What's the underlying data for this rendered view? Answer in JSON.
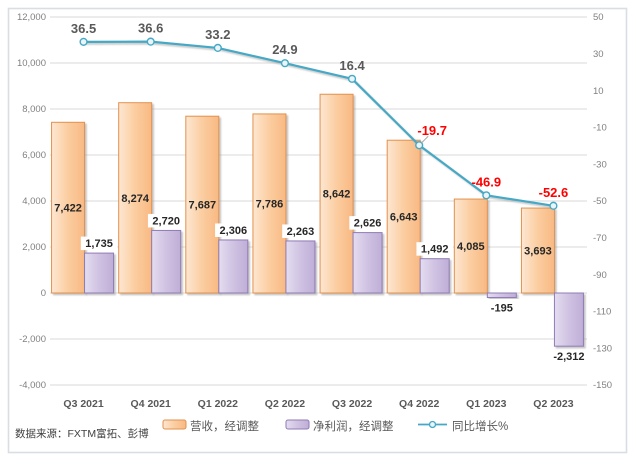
{
  "frame": {
    "border_color": "#d9dee4",
    "background": "#ffffff"
  },
  "source": {
    "text": "数据来源：FXTM富拓、彭博"
  },
  "chart_data": {
    "type": "bar+line combo",
    "title": "",
    "categories": [
      "Q3 2021",
      "Q4 2021",
      "Q1 2022",
      "Q2 2022",
      "Q3 2022",
      "Q4 2022",
      "Q1 2023",
      "Q2 2023"
    ],
    "series": [
      {
        "name": "营收，经调整",
        "type": "bar",
        "axis": "left",
        "values": [
          7422,
          8274,
          7687,
          7786,
          8642,
          6643,
          4085,
          3693
        ],
        "labels": [
          "7,422",
          "8,274",
          "7,687",
          "7,786",
          "8,642",
          "6,643",
          "4,085",
          "3,693"
        ],
        "fill_stops": [
          "#FDE7D2",
          "#FBCDA0",
          "#F8B983"
        ],
        "stroke": "#E2914E"
      },
      {
        "name": "净利润，经调整",
        "type": "bar",
        "axis": "left",
        "values": [
          1735,
          2720,
          2306,
          2263,
          2626,
          1492,
          -195,
          -2312
        ],
        "labels": [
          "1,735",
          "2,720",
          "2,306",
          "2,263",
          "2,626",
          "1,492",
          "-195",
          "-2,312"
        ],
        "fill_stops": [
          "#E4DDF0",
          "#CFC2E2",
          "#BFAED7"
        ],
        "stroke": "#8F7BB5",
        "negative_label_color": "#FF0000"
      },
      {
        "name": "同比增长%",
        "type": "line",
        "axis": "right",
        "values": [
          36.5,
          36.6,
          33.2,
          24.9,
          16.4,
          -19.7,
          -46.9,
          -52.6
        ],
        "labels": [
          "36.5",
          "36.6",
          "33.2",
          "24.9",
          "16.4",
          "-19.7",
          "-46.9",
          "-52.6"
        ],
        "color": "#45A9C5",
        "marker_fill": "#EAF4F9",
        "label_color": "#595959",
        "negative_label_color": "#FF0000"
      }
    ],
    "left_axis": {
      "min": -4000,
      "max": 12000,
      "step": 2000,
      "ticks": [
        "12,000",
        "10,000",
        "8,000",
        "6,000",
        "4,000",
        "2,000",
        "0",
        "-2,000",
        "-4,000"
      ]
    },
    "right_axis": {
      "min": -150,
      "max": 50,
      "step": 20,
      "ticks": [
        "50",
        "30",
        "10",
        "-10",
        "-30",
        "-50",
        "-70",
        "-90",
        "-110",
        "-130",
        "-150"
      ]
    },
    "grid": true,
    "gridline_color": "#D9D9D9",
    "legend_position": "bottom"
  }
}
